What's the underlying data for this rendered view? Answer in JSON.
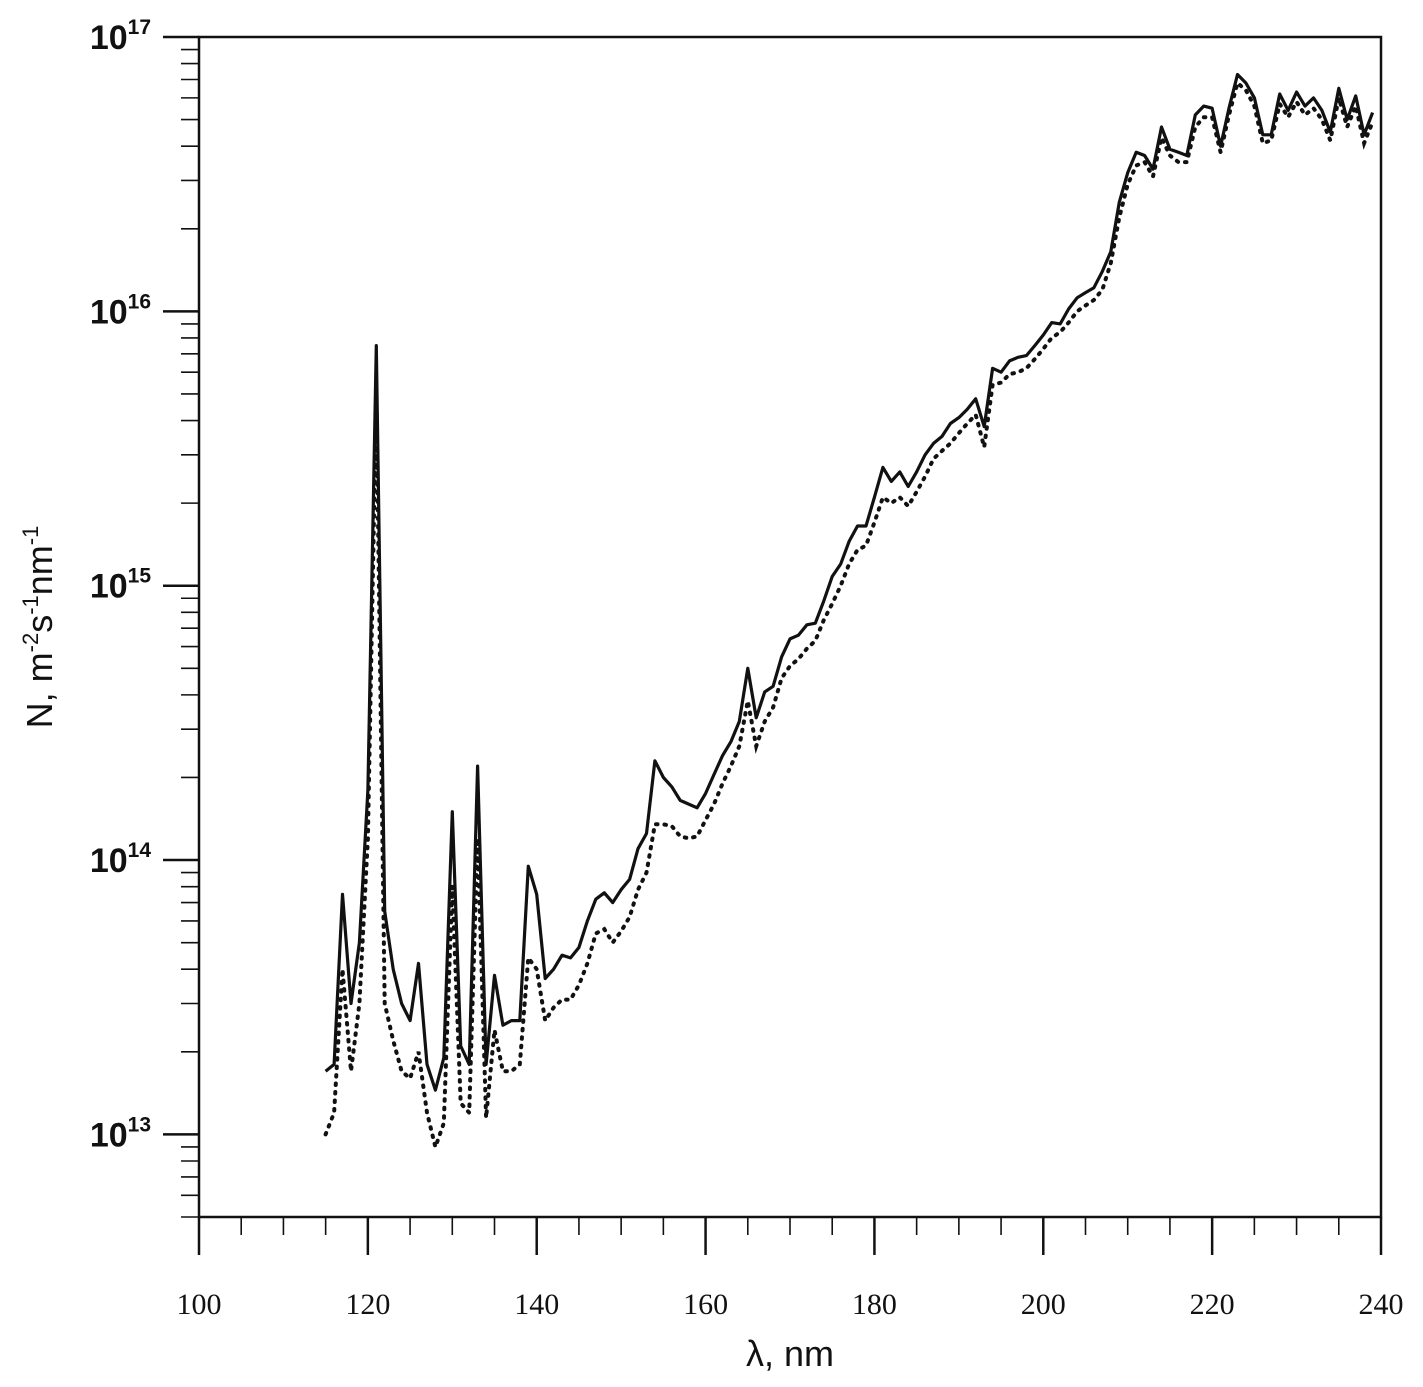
{
  "chart_data": {
    "type": "line",
    "xlabel": "λ, nm",
    "ylabel": {
      "parts": [
        {
          "t": "N, m",
          "sup": false
        },
        {
          "t": "-2",
          "sup": true
        },
        {
          "t": "s",
          "sup": false
        },
        {
          "t": "-1",
          "sup": true
        },
        {
          "t": "nm",
          "sup": false
        },
        {
          "t": "-1",
          "sup": true
        }
      ]
    },
    "y_scale": "log",
    "xlim": [
      100,
      240
    ],
    "ylim": [
      5000000000000.0,
      1e+17
    ],
    "x_ticks": [
      "100",
      "120",
      "140",
      "160",
      "180",
      "200",
      "220",
      "240"
    ],
    "y_ticks": [
      {
        "base": "10",
        "exp": "13",
        "value": 10000000000000.0
      },
      {
        "base": "10",
        "exp": "14",
        "value": 100000000000000.0
      },
      {
        "base": "10",
        "exp": "15",
        "value": 1000000000000000.0
      },
      {
        "base": "10",
        "exp": "16",
        "value": 1e+16
      },
      {
        "base": "10",
        "exp": "17",
        "value": 1e+17
      }
    ],
    "grid": false,
    "legend": "none",
    "series": [
      {
        "style": "solid",
        "points": [
          [
            115,
            17000000000000.0
          ],
          [
            116,
            18000000000000.0
          ],
          [
            117,
            75000000000000.0
          ],
          [
            118,
            30000000000000.0
          ],
          [
            119,
            50000000000000.0
          ],
          [
            120,
            180000000000000.0
          ],
          [
            121,
            7500000000000000.0
          ],
          [
            122,
            65000000000000.0
          ],
          [
            123,
            40000000000000.0
          ],
          [
            124,
            30000000000000.0
          ],
          [
            125,
            26000000000000.0
          ],
          [
            126,
            42000000000000.0
          ],
          [
            127,
            18000000000000.0
          ],
          [
            128,
            14500000000000.0
          ],
          [
            129,
            19000000000000.0
          ],
          [
            130,
            150000000000000.0
          ],
          [
            131,
            21000000000000.0
          ],
          [
            132,
            18000000000000.0
          ],
          [
            133,
            220000000000000.0
          ],
          [
            134,
            18000000000000.0
          ],
          [
            135,
            38000000000000.0
          ],
          [
            136,
            25000000000000.0
          ],
          [
            137,
            26000000000000.0
          ],
          [
            138,
            26000000000000.0
          ],
          [
            139,
            95000000000000.0
          ],
          [
            140,
            75000000000000.0
          ],
          [
            141,
            37000000000000.0
          ],
          [
            142,
            40000000000000.0
          ],
          [
            143,
            45000000000000.0
          ],
          [
            144,
            44000000000000.0
          ],
          [
            145,
            48000000000000.0
          ],
          [
            146,
            60000000000000.0
          ],
          [
            147,
            72000000000000.0
          ],
          [
            148,
            76000000000000.0
          ],
          [
            149,
            70000000000000.0
          ],
          [
            150,
            78000000000000.0
          ],
          [
            151,
            85000000000000.0
          ],
          [
            152,
            110000000000000.0
          ],
          [
            153,
            125000000000000.0
          ],
          [
            154,
            230000000000000.0
          ],
          [
            155,
            200000000000000.0
          ],
          [
            156,
            185000000000000.0
          ],
          [
            157,
            165000000000000.0
          ],
          [
            158,
            160000000000000.0
          ],
          [
            159,
            155000000000000.0
          ],
          [
            160,
            175000000000000.0
          ],
          [
            161,
            205000000000000.0
          ],
          [
            162,
            240000000000000.0
          ],
          [
            163,
            270000000000000.0
          ],
          [
            164,
            320000000000000.0
          ],
          [
            165,
            500000000000000.0
          ],
          [
            166,
            330000000000000.0
          ],
          [
            167,
            410000000000000.0
          ],
          [
            168,
            430000000000000.0
          ],
          [
            169,
            550000000000000.0
          ],
          [
            170,
            640000000000000.0
          ],
          [
            171,
            660000000000000.0
          ],
          [
            172,
            720000000000000.0
          ],
          [
            173,
            730000000000000.0
          ],
          [
            174,
            880000000000000.0
          ],
          [
            175,
            1080000000000000.0
          ],
          [
            176,
            1200000000000000.0
          ],
          [
            177,
            1450000000000000.0
          ],
          [
            178,
            1650000000000000.0
          ],
          [
            179,
            1650000000000000.0
          ],
          [
            180,
            2100000000000000.0
          ],
          [
            181,
            2700000000000000.0
          ],
          [
            182,
            2400000000000000.0
          ],
          [
            183,
            2600000000000000.0
          ],
          [
            184,
            2300000000000000.0
          ],
          [
            185,
            2600000000000000.0
          ],
          [
            186,
            3000000000000000.0
          ],
          [
            187,
            3300000000000000.0
          ],
          [
            188,
            3500000000000000.0
          ],
          [
            189,
            3900000000000000.0
          ],
          [
            190,
            4100000000000000.0
          ],
          [
            191,
            4400000000000000.0
          ],
          [
            192,
            4800000000000000.0
          ],
          [
            193,
            3800000000000000.0
          ],
          [
            194,
            6200000000000000.0
          ],
          [
            195,
            6000000000000000.0
          ],
          [
            196,
            6600000000000000.0
          ],
          [
            197,
            6800000000000000.0
          ],
          [
            198,
            6900000000000000.0
          ],
          [
            199,
            7500000000000000.0
          ],
          [
            200,
            8200000000000000.0
          ],
          [
            201,
            9100000000000000.0
          ],
          [
            202,
            9000000000000000.0
          ],
          [
            203,
            1.02e+16
          ],
          [
            204,
            1.12e+16
          ],
          [
            205,
            1.17e+16
          ],
          [
            206,
            1.22e+16
          ],
          [
            207,
            1.4e+16
          ],
          [
            208,
            1.65e+16
          ],
          [
            209,
            2.5e+16
          ],
          [
            210,
            3.2e+16
          ],
          [
            211,
            3.8e+16
          ],
          [
            212,
            3.7e+16
          ],
          [
            213,
            3.3e+16
          ],
          [
            214,
            4.7e+16
          ],
          [
            215,
            3.9e+16
          ],
          [
            216,
            3.8e+16
          ],
          [
            217,
            3.7e+16
          ],
          [
            218,
            5.2e+16
          ],
          [
            219,
            5.6e+16
          ],
          [
            220,
            5.5e+16
          ],
          [
            221,
            4e+16
          ],
          [
            222,
            5.5e+16
          ],
          [
            223,
            7.3e+16
          ],
          [
            224,
            6.8e+16
          ],
          [
            225,
            6e+16
          ],
          [
            226,
            4.4e+16
          ],
          [
            227,
            4.4e+16
          ],
          [
            228,
            6.2e+16
          ],
          [
            229,
            5.4e+16
          ],
          [
            230,
            6.3e+16
          ],
          [
            231,
            5.6e+16
          ],
          [
            232,
            6e+16
          ],
          [
            233,
            5.4e+16
          ],
          [
            234,
            4.5e+16
          ],
          [
            235,
            6.5e+16
          ],
          [
            236,
            5e+16
          ],
          [
            237,
            6.1e+16
          ],
          [
            238,
            4.4e+16
          ],
          [
            239,
            5.3e+16
          ]
        ]
      },
      {
        "style": "dotted",
        "points": [
          [
            115,
            10000000000000.0
          ],
          [
            116,
            12000000000000.0
          ],
          [
            117,
            40000000000000.0
          ],
          [
            118,
            17000000000000.0
          ],
          [
            119,
            30000000000000.0
          ],
          [
            120,
            120000000000000.0
          ],
          [
            121,
            5000000000000000.0
          ],
          [
            122,
            30000000000000.0
          ],
          [
            123,
            22000000000000.0
          ],
          [
            124,
            17000000000000.0
          ],
          [
            125,
            16000000000000.0
          ],
          [
            126,
            20000000000000.0
          ],
          [
            127,
            12000000000000.0
          ],
          [
            128,
            9000000000000.0
          ],
          [
            129,
            11000000000000.0
          ],
          [
            130,
            80000000000000.0
          ],
          [
            131,
            13000000000000.0
          ],
          [
            132,
            12000000000000.0
          ],
          [
            133,
            120000000000000.0
          ],
          [
            134,
            11500000000000.0
          ],
          [
            135,
            24000000000000.0
          ],
          [
            136,
            17000000000000.0
          ],
          [
            137,
            17000000000000.0
          ],
          [
            138,
            18000000000000.0
          ],
          [
            139,
            44000000000000.0
          ],
          [
            140,
            40000000000000.0
          ],
          [
            141,
            26000000000000.0
          ],
          [
            142,
            29000000000000.0
          ],
          [
            143,
            31000000000000.0
          ],
          [
            144,
            31000000000000.0
          ],
          [
            145,
            35000000000000.0
          ],
          [
            146,
            42000000000000.0
          ],
          [
            147,
            54000000000000.0
          ],
          [
            148,
            56000000000000.0
          ],
          [
            149,
            50000000000000.0
          ],
          [
            150,
            55000000000000.0
          ],
          [
            151,
            62000000000000.0
          ],
          [
            152,
            78000000000000.0
          ],
          [
            153,
            90000000000000.0
          ],
          [
            154,
            135000000000000.0
          ],
          [
            155,
            135000000000000.0
          ],
          [
            156,
            133000000000000.0
          ],
          [
            157,
            122000000000000.0
          ],
          [
            158,
            120000000000000.0
          ],
          [
            159,
            122000000000000.0
          ],
          [
            160,
            140000000000000.0
          ],
          [
            161,
            160000000000000.0
          ],
          [
            162,
            190000000000000.0
          ],
          [
            163,
            220000000000000.0
          ],
          [
            164,
            260000000000000.0
          ],
          [
            165,
            380000000000000.0
          ],
          [
            166,
            260000000000000.0
          ],
          [
            167,
            320000000000000.0
          ],
          [
            168,
            360000000000000.0
          ],
          [
            169,
            460000000000000.0
          ],
          [
            170,
            510000000000000.0
          ],
          [
            171,
            540000000000000.0
          ],
          [
            172,
            590000000000000.0
          ],
          [
            173,
            630000000000000.0
          ],
          [
            174,
            750000000000000.0
          ],
          [
            175,
            860000000000000.0
          ],
          [
            176,
            1000000000000000.0
          ],
          [
            177,
            1200000000000000.0
          ],
          [
            178,
            1350000000000000.0
          ],
          [
            179,
            1400000000000000.0
          ],
          [
            180,
            1700000000000000.0
          ],
          [
            181,
            2100000000000000.0
          ],
          [
            182,
            2000000000000000.0
          ],
          [
            183,
            2100000000000000.0
          ],
          [
            184,
            1950000000000000.0
          ],
          [
            185,
            2200000000000000.0
          ],
          [
            186,
            2500000000000000.0
          ],
          [
            187,
            2900000000000000.0
          ],
          [
            188,
            3100000000000000.0
          ],
          [
            189,
            3300000000000000.0
          ],
          [
            190,
            3600000000000000.0
          ],
          [
            191,
            3900000000000000.0
          ],
          [
            192,
            4200000000000000.0
          ],
          [
            193,
            3200000000000000.0
          ],
          [
            194,
            5400000000000000.0
          ],
          [
            195,
            5500000000000000.0
          ],
          [
            196,
            5900000000000000.0
          ],
          [
            197,
            6000000000000000.0
          ],
          [
            198,
            6200000000000000.0
          ],
          [
            199,
            6700000000000000.0
          ],
          [
            200,
            7300000000000000.0
          ],
          [
            201,
            8000000000000000.0
          ],
          [
            202,
            8400000000000000.0
          ],
          [
            203,
            9100000000000000.0
          ],
          [
            204,
            1e+16
          ],
          [
            205,
            1.05e+16
          ],
          [
            206,
            1.1e+16
          ],
          [
            207,
            1.2e+16
          ],
          [
            208,
            1.5e+16
          ],
          [
            209,
            2.2e+16
          ],
          [
            210,
            2.9e+16
          ],
          [
            211,
            3.4e+16
          ],
          [
            212,
            3.5e+16
          ],
          [
            213,
            3.1e+16
          ],
          [
            214,
            4.3e+16
          ],
          [
            215,
            3.7e+16
          ],
          [
            216,
            3.5e+16
          ],
          [
            217,
            3.5e+16
          ],
          [
            218,
            4.7e+16
          ],
          [
            219,
            5.1e+16
          ],
          [
            220,
            5.1e+16
          ],
          [
            221,
            3.8e+16
          ],
          [
            222,
            5.2e+16
          ],
          [
            223,
            6.8e+16
          ],
          [
            224,
            6.4e+16
          ],
          [
            225,
            5.6e+16
          ],
          [
            226,
            4.1e+16
          ],
          [
            227,
            4.2e+16
          ],
          [
            228,
            5.7e+16
          ],
          [
            229,
            5.1e+16
          ],
          [
            230,
            5.8e+16
          ],
          [
            231,
            5.2e+16
          ],
          [
            232,
            5.5e+16
          ],
          [
            233,
            5e+16
          ],
          [
            234,
            4.2e+16
          ],
          [
            235,
            6e+16
          ],
          [
            236,
            4.7e+16
          ],
          [
            237,
            5.6e+16
          ],
          [
            238,
            4.1e+16
          ],
          [
            239,
            4.9e+16
          ]
        ]
      }
    ]
  }
}
